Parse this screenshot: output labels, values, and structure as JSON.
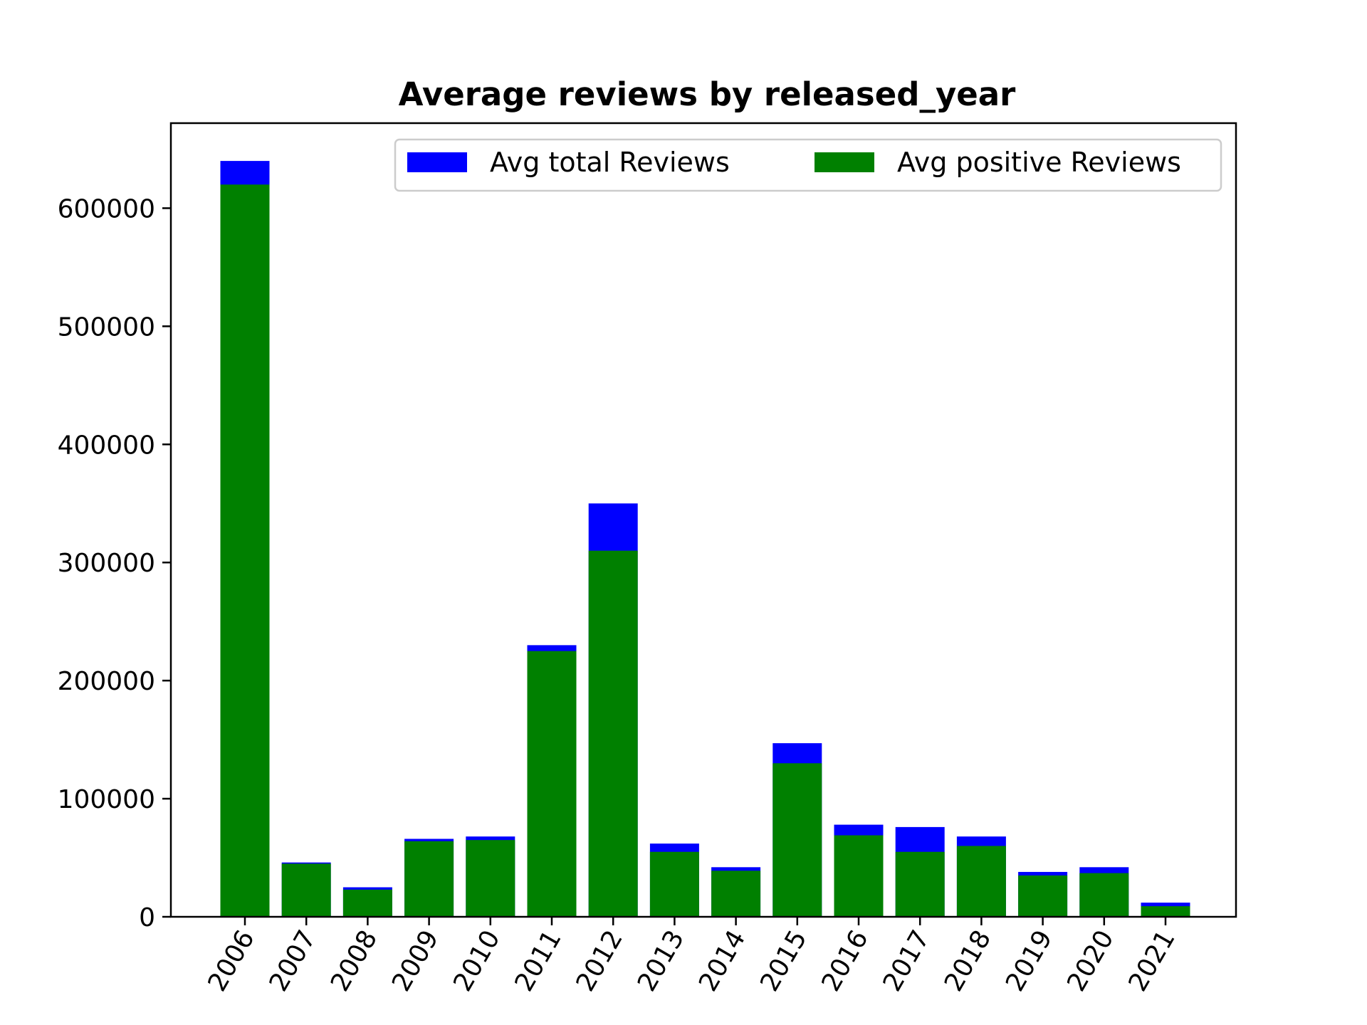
{
  "chart_data": {
    "type": "bar",
    "title": "Average reviews by released_year",
    "xlabel": "",
    "ylabel": "",
    "categories": [
      "2006",
      "2007",
      "2008",
      "2009",
      "2010",
      "2011",
      "2012",
      "2013",
      "2014",
      "2015",
      "2016",
      "2017",
      "2018",
      "2019",
      "2020",
      "2021"
    ],
    "series": [
      {
        "name": "Avg total Reviews",
        "color": "#0000ff",
        "values": [
          640000,
          46000,
          25000,
          66000,
          68000,
          230000,
          350000,
          62000,
          42000,
          147000,
          78000,
          76000,
          68000,
          38000,
          42000,
          12000
        ]
      },
      {
        "name": "Avg positive Reviews",
        "color": "#008000",
        "values": [
          620000,
          45000,
          23000,
          64000,
          65000,
          225000,
          310000,
          55000,
          39000,
          130000,
          69000,
          55000,
          60000,
          35000,
          37000,
          9000
        ]
      }
    ],
    "ylim": [
      0,
      672000
    ],
    "yticks": [
      0,
      100000,
      200000,
      300000,
      400000,
      500000,
      600000
    ],
    "ytick_labels": [
      "0",
      "100000",
      "200000",
      "300000",
      "400000",
      "500000",
      "600000"
    ],
    "legend_position": "top-right",
    "grid": false
  }
}
